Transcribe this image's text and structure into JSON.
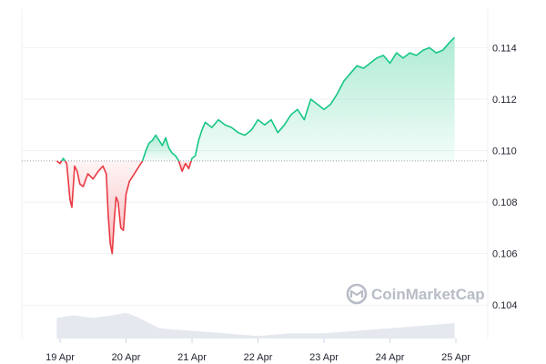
{
  "chart_data": {
    "type": "area",
    "title": "",
    "xlabel": "",
    "ylabel": "",
    "ylim": [
      0.1027,
      0.1155
    ],
    "yticks": [
      "0.104",
      "0.106",
      "0.108",
      "0.110",
      "0.112",
      "0.114"
    ],
    "xticks": [
      "19 Apr",
      "20 Apr",
      "21 Apr",
      "22 Apr",
      "23 Apr",
      "24 Apr",
      "25 Apr"
    ],
    "baseline": 0.1096,
    "grid": true,
    "colors": {
      "up": "#16c784",
      "down": "#ea3943",
      "volume": "#e5e8ef",
      "baseline": "#9aa0ab"
    },
    "watermark": "CoinMarketCap",
    "price_series": [
      [
        -0.05,
        0.1096
      ],
      [
        0.0,
        0.1095
      ],
      [
        0.05,
        0.1097
      ],
      [
        0.1,
        0.1095
      ],
      [
        0.15,
        0.1081
      ],
      [
        0.18,
        0.1078
      ],
      [
        0.22,
        0.1094
      ],
      [
        0.26,
        0.1092
      ],
      [
        0.3,
        0.1087
      ],
      [
        0.35,
        0.1086
      ],
      [
        0.42,
        0.1091
      ],
      [
        0.5,
        0.1089
      ],
      [
        0.58,
        0.1092
      ],
      [
        0.65,
        0.1094
      ],
      [
        0.7,
        0.1091
      ],
      [
        0.73,
        0.1075
      ],
      [
        0.76,
        0.1064
      ],
      [
        0.79,
        0.106
      ],
      [
        0.82,
        0.1072
      ],
      [
        0.85,
        0.1082
      ],
      [
        0.88,
        0.108
      ],
      [
        0.92,
        0.107
      ],
      [
        0.96,
        0.1069
      ],
      [
        1.0,
        0.1083
      ],
      [
        1.05,
        0.1088
      ],
      [
        1.1,
        0.109
      ],
      [
        1.15,
        0.1092
      ],
      [
        1.2,
        0.1094
      ],
      [
        1.25,
        0.1096
      ],
      [
        1.3,
        0.11
      ],
      [
        1.35,
        0.1103
      ],
      [
        1.4,
        0.1104
      ],
      [
        1.45,
        0.1106
      ],
      [
        1.5,
        0.1104
      ],
      [
        1.55,
        0.1102
      ],
      [
        1.6,
        0.1105
      ],
      [
        1.65,
        0.1101
      ],
      [
        1.7,
        0.1099
      ],
      [
        1.75,
        0.1098
      ],
      [
        1.8,
        0.1096
      ],
      [
        1.85,
        0.1092
      ],
      [
        1.9,
        0.1095
      ],
      [
        1.95,
        0.1093
      ],
      [
        2.0,
        0.1097
      ],
      [
        2.05,
        0.1098
      ],
      [
        2.1,
        0.1104
      ],
      [
        2.15,
        0.1108
      ],
      [
        2.2,
        0.1111
      ],
      [
        2.3,
        0.1109
      ],
      [
        2.4,
        0.1112
      ],
      [
        2.5,
        0.111
      ],
      [
        2.6,
        0.1109
      ],
      [
        2.7,
        0.1107
      ],
      [
        2.8,
        0.1106
      ],
      [
        2.9,
        0.1108
      ],
      [
        3.0,
        0.1112
      ],
      [
        3.1,
        0.111
      ],
      [
        3.2,
        0.1112
      ],
      [
        3.3,
        0.1107
      ],
      [
        3.4,
        0.111
      ],
      [
        3.5,
        0.1114
      ],
      [
        3.6,
        0.1116
      ],
      [
        3.7,
        0.1112
      ],
      [
        3.8,
        0.112
      ],
      [
        3.9,
        0.1118
      ],
      [
        4.0,
        0.1116
      ],
      [
        4.1,
        0.1118
      ],
      [
        4.2,
        0.1122
      ],
      [
        4.3,
        0.1127
      ],
      [
        4.4,
        0.113
      ],
      [
        4.5,
        0.1133
      ],
      [
        4.6,
        0.1132
      ],
      [
        4.7,
        0.1134
      ],
      [
        4.8,
        0.1136
      ],
      [
        4.9,
        0.1137
      ],
      [
        5.0,
        0.1134
      ],
      [
        5.1,
        0.1138
      ],
      [
        5.2,
        0.1136
      ],
      [
        5.3,
        0.1138
      ],
      [
        5.4,
        0.1137
      ],
      [
        5.5,
        0.1139
      ],
      [
        5.6,
        0.114
      ],
      [
        5.7,
        0.1138
      ],
      [
        5.8,
        0.1139
      ],
      [
        5.9,
        0.1142
      ],
      [
        5.98,
        0.1144
      ]
    ],
    "volume_series": [
      [
        -0.05,
        0.1035
      ],
      [
        0.2,
        0.1036
      ],
      [
        0.5,
        0.1035
      ],
      [
        0.8,
        0.1036
      ],
      [
        1.0,
        0.1037
      ],
      [
        1.2,
        0.1035
      ],
      [
        1.5,
        0.1031
      ],
      [
        2.0,
        0.103
      ],
      [
        2.5,
        0.1029
      ],
      [
        3.0,
        0.1028
      ],
      [
        3.5,
        0.1029
      ],
      [
        4.0,
        0.1029
      ],
      [
        4.5,
        0.103
      ],
      [
        5.0,
        0.1031
      ],
      [
        5.5,
        0.1032
      ],
      [
        5.98,
        0.1033
      ]
    ]
  }
}
